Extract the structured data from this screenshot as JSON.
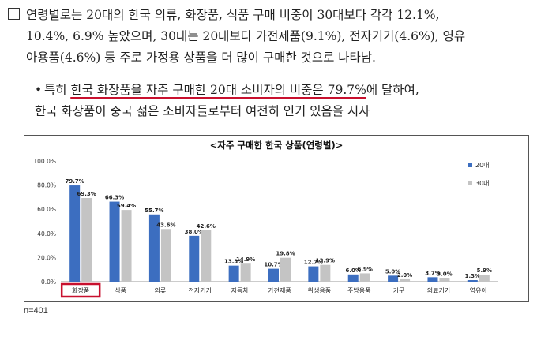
{
  "paragraph": {
    "line1": "연령별로는 20대의 한국 의류, 화장품, 식품 구매 비중이 30대보다 각각 12.1%,",
    "line2": "10.4%, 6.9% 높았으며, 30대는 20대보다 가전제품(9.1%), 전자기기(4.6%), 영유",
    "line3": "아용품(4.6%) 등 주로 가정용 상품을 더 많이 구매한 것으로 나타남."
  },
  "bullet": {
    "marker": "•",
    "prefix": "특히 ",
    "highlight": "한국 화장품을 자주 구매한 20대 소비자의 비중은 79.7%",
    "suffix": "에 달하여,",
    "line2": "한국 화장품이 중국 젊은 소비자들로부터 여전히 인기 있음을 시사"
  },
  "colors": {
    "series_20s": "#3c6ec0",
    "series_30s": "#c4c4c4",
    "highlight_red": "#c8102e"
  },
  "chart_data": {
    "type": "bar",
    "title": "<자주 구매한 한국 상품(연령별)>",
    "categories": [
      "화장품",
      "식품",
      "의류",
      "전자기기",
      "자동차",
      "가전제품",
      "위생용품",
      "주방용품",
      "가구",
      "의료기기",
      "영유아"
    ],
    "series": [
      {
        "name": "20대",
        "values": [
          79.7,
          66.3,
          55.7,
          38.0,
          13.3,
          10.7,
          12.7,
          6.0,
          5.0,
          3.7,
          1.3
        ],
        "labels": [
          "79.7%",
          "66.3%",
          "55.7%",
          "38.0%",
          "13.3%",
          "10.7%",
          "12.7%",
          "6.0%",
          "5.0%",
          "3.7%",
          "1.3%"
        ]
      },
      {
        "name": "30대",
        "values": [
          69.3,
          59.4,
          43.6,
          42.6,
          14.9,
          19.8,
          13.9,
          6.9,
          2.0,
          3.0,
          5.9
        ],
        "labels": [
          "69.3%",
          "59.4%",
          "43.6%",
          "42.6%",
          "14.9%",
          "19.8%",
          "13.9%",
          "6.9%",
          "2.0%",
          "3.0%",
          "5.9%"
        ]
      }
    ],
    "yticks": [
      "0.0%",
      "20.0%",
      "40.0%",
      "60.0%",
      "80.0%",
      "100.0%"
    ],
    "ylim": [
      0,
      100
    ],
    "highlighted_category": "화장품",
    "legend_position": "right"
  },
  "footnote": "n=401"
}
